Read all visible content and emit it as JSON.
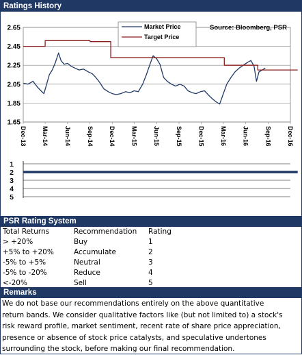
{
  "sections": {
    "history_title": "Ratings History",
    "system_title": "PSR Rating System",
    "remarks_title": "Remarks"
  },
  "legend": {
    "market": "Market Price",
    "target": "Target Price",
    "source": "Source: Bloomberg, PSR"
  },
  "colors": {
    "navy": "#1f3864",
    "market": "#1f3864",
    "target": "#8b1a1a",
    "rating_line": "#1f3864"
  },
  "chart_data": [
    {
      "type": "line",
      "x_ticks": [
        "Dec-13",
        "Mar-14",
        "Jun-14",
        "Sep-14",
        "Dec-14",
        "Mar-15",
        "Jun-15",
        "Sep-15",
        "Dec-15",
        "Mar-16",
        "Jun-16",
        "Sep-16",
        "Dec-16"
      ],
      "y_ticks": [
        "1.65",
        "1.85",
        "2.05",
        "2.25",
        "2.45",
        "2.65"
      ],
      "ylim": [
        1.65,
        2.65
      ],
      "series": [
        {
          "name": "Market Price",
          "points": [
            [
              "2013-12-02",
              2.06
            ],
            [
              "2013-12-20",
              2.05
            ],
            [
              "2014-01-10",
              2.08
            ],
            [
              "2014-01-28",
              2.02
            ],
            [
              "2014-02-12",
              1.98
            ],
            [
              "2014-02-24",
              1.95
            ],
            [
              "2014-03-05",
              2.03
            ],
            [
              "2014-03-18",
              2.15
            ],
            [
              "2014-03-30",
              2.2
            ],
            [
              "2014-04-12",
              2.28
            ],
            [
              "2014-04-25",
              2.38
            ],
            [
              "2014-05-05",
              2.3
            ],
            [
              "2014-05-18",
              2.26
            ],
            [
              "2014-06-01",
              2.27
            ],
            [
              "2014-06-15",
              2.24
            ],
            [
              "2014-07-01",
              2.22
            ],
            [
              "2014-07-18",
              2.2
            ],
            [
              "2014-08-05",
              2.21
            ],
            [
              "2014-08-25",
              2.18
            ],
            [
              "2014-09-10",
              2.16
            ],
            [
              "2014-09-25",
              2.12
            ],
            [
              "2014-10-10",
              2.07
            ],
            [
              "2014-10-28",
              2.0
            ],
            [
              "2014-11-15",
              1.97
            ],
            [
              "2014-12-01",
              1.95
            ],
            [
              "2014-12-18",
              1.94
            ],
            [
              "2015-01-05",
              1.95
            ],
            [
              "2015-01-25",
              1.97
            ],
            [
              "2015-02-12",
              1.96
            ],
            [
              "2015-03-01",
              1.98
            ],
            [
              "2015-03-18",
              1.97
            ],
            [
              "2015-04-05",
              2.05
            ],
            [
              "2015-04-20",
              2.15
            ],
            [
              "2015-05-05",
              2.26
            ],
            [
              "2015-05-18",
              2.35
            ],
            [
              "2015-06-01",
              2.32
            ],
            [
              "2015-06-15",
              2.26
            ],
            [
              "2015-06-30",
              2.12
            ],
            [
              "2015-07-15",
              2.08
            ],
            [
              "2015-08-01",
              2.05
            ],
            [
              "2015-08-18",
              2.03
            ],
            [
              "2015-09-05",
              2.05
            ],
            [
              "2015-09-22",
              2.03
            ],
            [
              "2015-10-08",
              1.98
            ],
            [
              "2015-10-25",
              1.96
            ],
            [
              "2015-11-10",
              1.95
            ],
            [
              "2015-11-28",
              1.97
            ],
            [
              "2015-12-15",
              1.98
            ],
            [
              "2016-01-02",
              1.93
            ],
            [
              "2016-01-18",
              1.89
            ],
            [
              "2016-02-02",
              1.86
            ],
            [
              "2016-02-15",
              1.84
            ],
            [
              "2016-03-01",
              1.95
            ],
            [
              "2016-03-15",
              2.05
            ],
            [
              "2016-04-01",
              2.12
            ],
            [
              "2016-04-18",
              2.18
            ],
            [
              "2016-05-05",
              2.22
            ],
            [
              "2016-05-22",
              2.25
            ],
            [
              "2016-06-08",
              2.28
            ],
            [
              "2016-06-22",
              2.3
            ],
            [
              "2016-07-05",
              2.24
            ],
            [
              "2016-07-15",
              2.08
            ],
            [
              "2016-07-25",
              2.18
            ],
            [
              "2016-08-08",
              2.2
            ],
            [
              "2016-08-20",
              2.22
            ]
          ]
        },
        {
          "name": "Target Price",
          "points": [
            [
              "2013-12-01",
              2.45
            ],
            [
              "2014-03-01",
              2.45
            ],
            [
              "2014-03-01",
              2.51
            ],
            [
              "2014-09-01",
              2.51
            ],
            [
              "2014-09-01",
              2.5
            ],
            [
              "2014-11-25",
              2.5
            ],
            [
              "2014-11-25",
              2.33
            ],
            [
              "2015-06-01",
              2.33
            ],
            [
              "2015-06-01",
              2.33
            ],
            [
              "2016-03-05",
              2.33
            ],
            [
              "2016-03-05",
              2.25
            ],
            [
              "2016-07-20",
              2.25
            ],
            [
              "2016-07-20",
              2.2
            ],
            [
              "2016-12-31",
              2.2
            ]
          ]
        }
      ]
    },
    {
      "type": "line",
      "y_ticks": [
        "1",
        "2",
        "3",
        "4",
        "5"
      ],
      "ylim": [
        1,
        5
      ],
      "series": [
        {
          "name": "Rating",
          "points": [
            [
              "2013-12-01",
              2
            ],
            [
              "2016-12-31",
              2
            ]
          ]
        }
      ]
    }
  ],
  "rating_table": {
    "headers": [
      "Total Returns",
      "Recommendation",
      "Rating"
    ],
    "rows": [
      [
        "> +20%",
        "Buy",
        "1"
      ],
      [
        "+5% to +20%",
        "Accumulate",
        "2"
      ],
      [
        "-5% to +5%",
        "Neutral",
        "3"
      ],
      [
        "-5% to -20%",
        "Reduce",
        "4"
      ],
      [
        "<-20%",
        "Sell",
        "5"
      ]
    ]
  },
  "remarks": [
    "We do not base our recommendations entirely on the  above quantitative",
    "return bands.  We consider qualitative factors like (but not limited to) a stock's",
    "risk reward profile, market sentiment, recent rate of share price appreciation,",
    "presence or absence of stock price catalysts, and speculative undertones",
    "surrounding the stock, before making our final recommendation."
  ]
}
